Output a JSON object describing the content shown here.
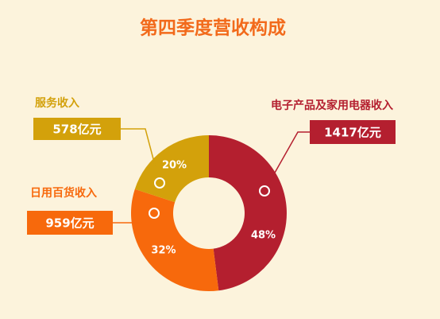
{
  "chart_data": {
    "type": "pie",
    "title": "第四季度营收构成",
    "categories": [
      "电子产品及家用电器收入",
      "日用百货收入",
      "服务收入"
    ],
    "values": [
      48,
      32,
      20
    ],
    "value_labels": [
      "48%",
      "32%",
      "20%"
    ],
    "amounts": [
      1417,
      959,
      578
    ],
    "amount_labels": [
      "1417亿元",
      "959亿元",
      "578亿元"
    ],
    "colors": [
      "#b41f2f",
      "#f7690c",
      "#d3a10b"
    ],
    "donut": true
  }
}
